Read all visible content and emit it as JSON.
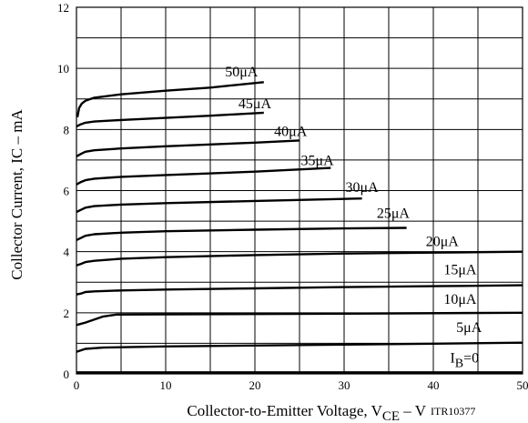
{
  "chart_data": {
    "type": "line",
    "title": "",
    "xlabel": {
      "main": "Collector-to-Emitter Voltage, V",
      "sub": "CE",
      "suffix": " –  V"
    },
    "ylabel": {
      "main": "Collector Current, I",
      "sub": "C",
      "suffix": " –  mA"
    },
    "figure_code": "ITR10377",
    "xlim": [
      0,
      50
    ],
    "ylim": [
      0,
      12
    ],
    "x_ticks": [
      "0",
      "10",
      "20",
      "30",
      "40",
      "50"
    ],
    "y_ticks": [
      "0",
      "2",
      "4",
      "6",
      "8",
      "10",
      "12"
    ],
    "grid": true,
    "series": [
      {
        "name": "I_B=0",
        "label": {
          "main": "I",
          "sub": "B",
          "suffix": "=0"
        },
        "points": [
          [
            0,
            0.05
          ],
          [
            50,
            0.05
          ]
        ]
      },
      {
        "name": "5μA",
        "label": {
          "main": "5μA"
        },
        "points": [
          [
            0,
            0.72
          ],
          [
            1,
            0.82
          ],
          [
            3,
            0.86
          ],
          [
            10,
            0.9
          ],
          [
            20,
            0.93
          ],
          [
            30,
            0.96
          ],
          [
            40,
            0.99
          ],
          [
            50,
            1.02
          ]
        ]
      },
      {
        "name": "10μA",
        "label": {
          "main": "10μA"
        },
        "points": [
          [
            0,
            1.6
          ],
          [
            1,
            1.68
          ],
          [
            2,
            1.78
          ],
          [
            3,
            1.88
          ],
          [
            4.5,
            1.94
          ],
          [
            10,
            1.95
          ],
          [
            30,
            1.97
          ],
          [
            50,
            2.0
          ]
        ]
      },
      {
        "name": "15μA",
        "label": {
          "main": "15μA"
        },
        "points": [
          [
            0,
            2.6
          ],
          [
            0.5,
            2.63
          ],
          [
            1,
            2.68
          ],
          [
            2,
            2.7
          ],
          [
            5,
            2.73
          ],
          [
            10,
            2.76
          ],
          [
            20,
            2.8
          ],
          [
            30,
            2.84
          ],
          [
            40,
            2.87
          ],
          [
            50,
            2.9
          ]
        ]
      },
      {
        "name": "20μA",
        "label": {
          "main": "20μA"
        },
        "points": [
          [
            0,
            3.55
          ],
          [
            0.5,
            3.6
          ],
          [
            1,
            3.66
          ],
          [
            2,
            3.7
          ],
          [
            5,
            3.77
          ],
          [
            10,
            3.82
          ],
          [
            20,
            3.89
          ],
          [
            30,
            3.94
          ],
          [
            40,
            3.97
          ],
          [
            50,
            4.0
          ]
        ]
      },
      {
        "name": "25μA",
        "label": {
          "main": "25μA"
        },
        "points": [
          [
            0,
            4.38
          ],
          [
            0.5,
            4.45
          ],
          [
            1,
            4.52
          ],
          [
            2,
            4.57
          ],
          [
            5,
            4.62
          ],
          [
            10,
            4.67
          ],
          [
            20,
            4.72
          ],
          [
            30,
            4.76
          ],
          [
            37,
            4.78
          ]
        ]
      },
      {
        "name": "30μA",
        "label": {
          "main": "30μA"
        },
        "points": [
          [
            0,
            5.3
          ],
          [
            0.5,
            5.37
          ],
          [
            1,
            5.44
          ],
          [
            2,
            5.49
          ],
          [
            5,
            5.54
          ],
          [
            10,
            5.59
          ],
          [
            20,
            5.66
          ],
          [
            32,
            5.74
          ]
        ]
      },
      {
        "name": "35μA",
        "label": {
          "main": "35μA"
        },
        "points": [
          [
            0,
            6.2
          ],
          [
            0.5,
            6.28
          ],
          [
            1,
            6.34
          ],
          [
            2,
            6.39
          ],
          [
            5,
            6.45
          ],
          [
            10,
            6.51
          ],
          [
            20,
            6.62
          ],
          [
            28.5,
            6.74
          ]
        ]
      },
      {
        "name": "40μA",
        "label": {
          "main": "40μA"
        },
        "points": [
          [
            0,
            7.12
          ],
          [
            0.5,
            7.2
          ],
          [
            1,
            7.27
          ],
          [
            2,
            7.32
          ],
          [
            5,
            7.38
          ],
          [
            10,
            7.45
          ],
          [
            20,
            7.57
          ],
          [
            25,
            7.64
          ]
        ]
      },
      {
        "name": "45μA",
        "label": {
          "main": "45μA"
        },
        "points": [
          [
            0,
            8.1
          ],
          [
            0.5,
            8.17
          ],
          [
            1,
            8.22
          ],
          [
            2,
            8.26
          ],
          [
            5,
            8.31
          ],
          [
            10,
            8.38
          ],
          [
            15,
            8.45
          ],
          [
            21,
            8.55
          ]
        ]
      },
      {
        "name": "50μA",
        "label": {
          "main": "50μA"
        },
        "points": [
          [
            0.1,
            8.4
          ],
          [
            0.3,
            8.7
          ],
          [
            0.6,
            8.85
          ],
          [
            1,
            8.94
          ],
          [
            2,
            9.04
          ],
          [
            5,
            9.15
          ],
          [
            10,
            9.27
          ],
          [
            15,
            9.37
          ],
          [
            21,
            9.55
          ]
        ]
      }
    ]
  }
}
